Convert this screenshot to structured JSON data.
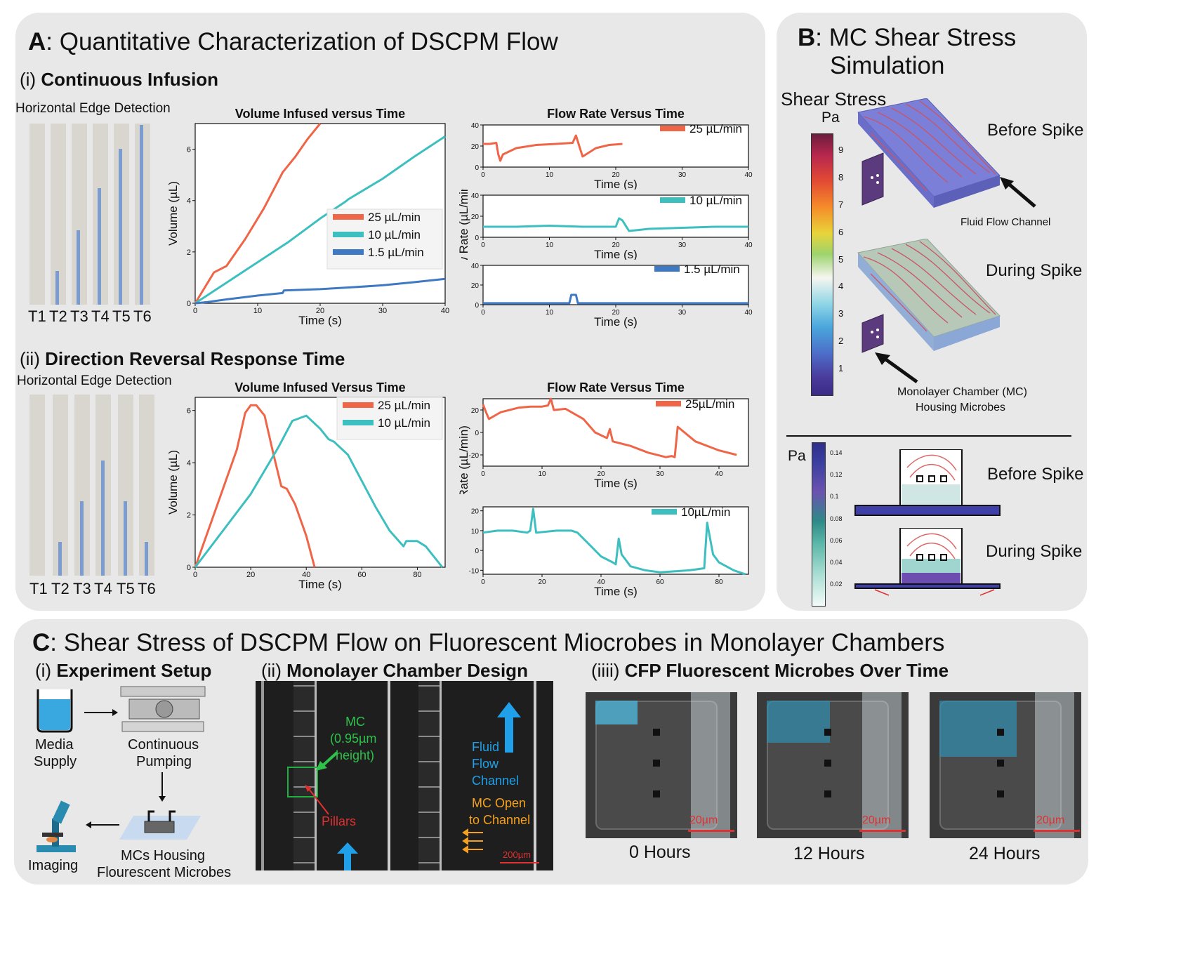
{
  "panelA": {
    "title_letter": "A",
    "title_rest": ": Quantitative Characterization of DSCPM Flow",
    "sec1_prefix": "(i) ",
    "sec1_title": "Continuous Infusion",
    "sec2_prefix": "(ii) ",
    "sec2_title": "Direction Reversal Response Time",
    "edge_label": "Horizontal Edge Detection",
    "tube_labels": [
      "T1",
      "T2",
      "T3",
      "T4",
      "T5",
      "T6"
    ],
    "colors": {
      "c25": "#ef6548",
      "c10": "#3dbfbf",
      "c15": "#3f79c3",
      "tube_fluid": "#7b9cd1"
    }
  },
  "panelB": {
    "title_letter": "B",
    "title_line1": ": MC Shear Stress",
    "title_line2": "Simulation",
    "shear_label": "Shear Stress",
    "unit_pa": "Pa",
    "cbar1_ticks": [
      "9",
      "8",
      "7",
      "6",
      "5",
      "4",
      "3",
      "2",
      "1"
    ],
    "before_spike": "Before Spike",
    "during_spike": "During Spike",
    "fluid_flow_channel": "Fluid Flow Channel",
    "mc_label_1": "Monolayer Chamber (MC)",
    "mc_label_2": "Housing Microbes",
    "unit_pa2": "Pa",
    "cbar2_ticks": [
      "0.14",
      "0.12",
      "0.1",
      "0.08",
      "0.06",
      "0.04",
      "0.02"
    ]
  },
  "panelC": {
    "title_letter": "C",
    "title_rest": ": Shear Stress of DSCPM Flow on Fluorescent Miocrobes in Monolayer Chambers",
    "sec1_prefix": "(i) ",
    "sec1_title": "Experiment Setup",
    "sec2_prefix": "(ii) ",
    "sec2_title": "Monolayer Chamber Design",
    "sec3_prefix": "(iiii) ",
    "sec3_title": "CFP Fluorescent Microbes Over Time",
    "media_1": "Media",
    "media_2": "Supply",
    "pump_1": "Continuous",
    "pump_2": "Pumping",
    "imaging": "Imaging",
    "mcs_1": "MCs Housing",
    "mcs_2": "Flourescent Microbes",
    "mc_green_1": "MC",
    "mc_green_2": "(0.95µm",
    "mc_green_3": "height)",
    "pillars": "Pillars",
    "fluid_1": "Fluid",
    "fluid_2": "Flow",
    "fluid_3": "Channel",
    "mcopen_1": "MC Open",
    "mcopen_2": "to Channel",
    "scale_200": "200µm",
    "scale_20": "20µm",
    "times": [
      "0 Hours",
      "12 Hours",
      "24 Hours"
    ]
  },
  "chart_data": [
    {
      "type": "line",
      "title": "Volume Infused versus Time",
      "xlabel": "Time (s)",
      "ylabel": "Volume (µL)",
      "xlim": [
        0,
        40
      ],
      "ylim": [
        0,
        7
      ],
      "xticks": [
        "0",
        "10",
        "20",
        "30",
        "40"
      ],
      "yticks": [
        "0",
        "2",
        "4",
        "6"
      ],
      "legend_position": "center-right",
      "series": [
        {
          "name": "25 µL/min",
          "color": "#ef6548",
          "x": [
            0,
            1,
            2,
            3,
            5,
            8,
            11,
            14,
            14.5,
            16,
            18,
            20
          ],
          "y": [
            0,
            0.4,
            0.8,
            1.2,
            1.45,
            2.5,
            3.7,
            5.1,
            5.25,
            5.7,
            6.4,
            7.0
          ]
        },
        {
          "name": "10 µL/min",
          "color": "#3dbfbf",
          "x": [
            0,
            5,
            10,
            15,
            20,
            24,
            24.5,
            30,
            35,
            40
          ],
          "y": [
            0,
            0.8,
            1.6,
            2.4,
            3.3,
            3.95,
            4.05,
            4.85,
            5.7,
            6.5
          ]
        },
        {
          "name": "1.5 µL/min",
          "color": "#3f79c3",
          "x": [
            0,
            2,
            5,
            10,
            14,
            14.2,
            20,
            25,
            30,
            35,
            40
          ],
          "y": [
            0,
            0.05,
            0.15,
            0.3,
            0.4,
            0.5,
            0.55,
            0.62,
            0.7,
            0.82,
            0.95
          ]
        }
      ]
    },
    {
      "type": "line",
      "title": "Flow Rate Versus Time",
      "xlabel": "Time (s)",
      "ylabel": "Flow Rate (µL/min)",
      "xlim": [
        0,
        40
      ],
      "ylim": [
        0,
        40
      ],
      "xticks": [
        "0",
        "10",
        "20",
        "30",
        "40"
      ],
      "yticks": [
        "0",
        "20",
        "40"
      ],
      "series": [
        {
          "name": "25 µL/min",
          "color": "#ef6548",
          "x": [
            0,
            1,
            2,
            2.3,
            2.6,
            3,
            5,
            8,
            11,
            13.5,
            14,
            14.5,
            15,
            17,
            19,
            21
          ],
          "y": [
            22,
            22,
            23,
            12,
            6,
            12,
            18,
            21,
            22,
            23,
            30,
            20,
            10,
            18,
            21,
            22
          ]
        }
      ]
    },
    {
      "type": "line",
      "xlabel": "Time (s)",
      "xlim": [
        0,
        40
      ],
      "ylim": [
        0,
        40
      ],
      "xticks": [
        "0",
        "10",
        "20",
        "30",
        "40"
      ],
      "yticks": [
        "0",
        "20",
        "40"
      ],
      "series": [
        {
          "name": "10 µL/min",
          "color": "#3dbfbf",
          "x": [
            0,
            5,
            10,
            15,
            19,
            20,
            20.5,
            21,
            22,
            25,
            30,
            35,
            40
          ],
          "y": [
            10,
            10,
            11,
            10,
            10,
            10,
            18,
            16,
            6,
            8,
            9,
            10,
            10
          ]
        }
      ]
    },
    {
      "type": "line",
      "xlabel": "Time (s)",
      "xlim": [
        0,
        40
      ],
      "ylim": [
        0,
        40
      ],
      "xticks": [
        "0",
        "10",
        "20",
        "30",
        "40"
      ],
      "yticks": [
        "0",
        "20",
        "40"
      ],
      "series": [
        {
          "name": "1.5 µL/min",
          "color": "#3f79c3",
          "x": [
            0,
            5,
            10,
            13,
            13.3,
            14,
            14.3,
            15,
            20,
            25,
            30,
            35,
            40
          ],
          "y": [
            1.5,
            1.5,
            1.5,
            1.5,
            10,
            10,
            1.5,
            1.5,
            1.5,
            1.5,
            1.5,
            1.5,
            1.5
          ]
        }
      ]
    },
    {
      "type": "line",
      "title": "Volume Infused Versus Time",
      "xlabel": "Time (s)",
      "ylabel": "Volume (µL)",
      "xlim": [
        0,
        90
      ],
      "ylim": [
        0,
        6.5
      ],
      "xticks": [
        "0",
        "20",
        "40",
        "60",
        "80"
      ],
      "yticks": [
        "0",
        "2",
        "4",
        "6"
      ],
      "legend_position": "top-right",
      "series": [
        {
          "name": "25 µL/min",
          "color": "#ef6548",
          "x": [
            0,
            5,
            10,
            15,
            18,
            20,
            22,
            25,
            28,
            31,
            33,
            36,
            40,
            43
          ],
          "y": [
            0,
            1.5,
            3,
            4.5,
            5.9,
            6.2,
            6.2,
            5.8,
            4.4,
            3.1,
            3.0,
            2.4,
            1.2,
            0
          ]
        },
        {
          "name": "10 µL/min",
          "color": "#3dbfbf",
          "x": [
            0,
            10,
            20,
            30,
            35,
            40,
            45,
            48,
            50,
            55,
            60,
            65,
            70,
            75,
            76,
            80,
            83,
            89
          ],
          "y": [
            0,
            1.4,
            2.8,
            4.6,
            5.6,
            5.8,
            5.3,
            4.9,
            4.8,
            4.3,
            3.3,
            2.3,
            1.4,
            0.8,
            1.0,
            1.0,
            0.8,
            0
          ]
        }
      ]
    },
    {
      "type": "line",
      "title": "Flow Rate Versus Time",
      "xlabel": "Time (s)",
      "ylabel": "Flow Rate (µL/min)",
      "xlim": [
        0,
        45
      ],
      "ylim": [
        -30,
        30
      ],
      "xticks": [
        "0",
        "10",
        "20",
        "30",
        "40"
      ],
      "yticks": [
        "20",
        "0",
        "-20"
      ],
      "series": [
        {
          "name": "25µL/min",
          "color": "#ef6548",
          "x": [
            0,
            0.5,
            1,
            3,
            6,
            8,
            10,
            11,
            11.5,
            12,
            14,
            17,
            19,
            21,
            21.5,
            22,
            25,
            28,
            31,
            32,
            32.5,
            33,
            36,
            40,
            43
          ],
          "y": [
            25,
            18,
            12,
            18,
            22,
            23,
            23,
            24,
            30,
            20,
            21,
            12,
            0,
            -5,
            3,
            -8,
            -12,
            -18,
            -22,
            -21,
            -22,
            5,
            -8,
            -16,
            -20
          ]
        }
      ]
    },
    {
      "type": "line",
      "xlabel": "Time (s)",
      "xlim": [
        0,
        90
      ],
      "ylim": [
        -12,
        22
      ],
      "xticks": [
        "0",
        "20",
        "40",
        "60",
        "80"
      ],
      "yticks": [
        "20",
        "10",
        "0",
        "-10"
      ],
      "series": [
        {
          "name": "10µL/min",
          "color": "#3dbfbf",
          "x": [
            0,
            5,
            10,
            15,
            16,
            17,
            18,
            25,
            30,
            32,
            36,
            40,
            44,
            45,
            46,
            47,
            50,
            55,
            60,
            70,
            75,
            76,
            78,
            80,
            85,
            89
          ],
          "y": [
            9,
            10,
            10,
            9,
            10,
            21,
            9,
            10,
            10,
            9,
            3,
            -3,
            -6,
            -7,
            6,
            -2,
            -8,
            -10,
            -11,
            -10,
            -9,
            14,
            -2,
            -6,
            -10,
            -12
          ]
        }
      ]
    }
  ]
}
